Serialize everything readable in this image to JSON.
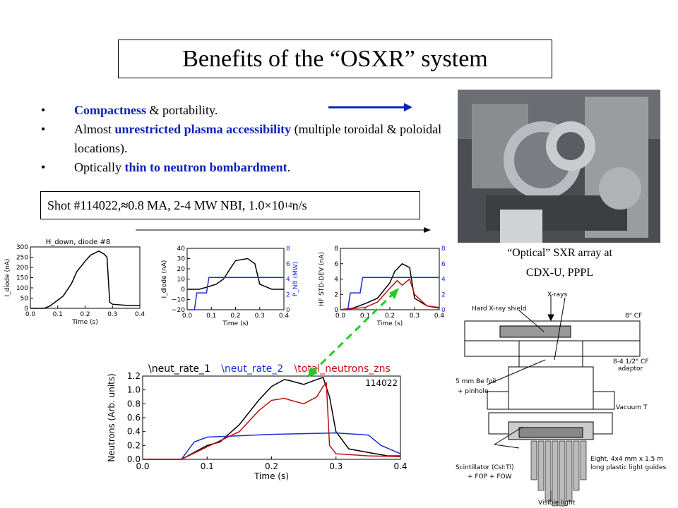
{
  "title": "Benefits of the “OSXR” system",
  "bullets": [
    {
      "bullet": "•",
      "parts": [
        {
          "t": "Compactness",
          "b": true
        },
        {
          "t": "  & portability.",
          "b": false
        }
      ]
    },
    {
      "bullet": "•",
      "parts": [
        {
          "t": "Almost ",
          "b": false
        },
        {
          "t": "unrestricted plasma accessibility",
          "b": true
        },
        {
          "t": " (multiple toroidal & poloidal locations).",
          "b": false
        }
      ]
    },
    {
      "bullet": "•",
      "parts": [
        {
          "t": "Optically ",
          "b": false
        },
        {
          "t": "thin to neutron bombardment",
          "b": true
        },
        {
          "t": ".",
          "b": false
        }
      ]
    }
  ],
  "shot": {
    "prefix": "Shot #114022, ",
    "approx": "≈",
    "mid": " 0.8 MA, 2-4 MW NBI, 1.0",
    "times": "×",
    "base": "10",
    "exp": "14",
    "suffix": " n/s"
  },
  "photo_caption": {
    "line1": "“Optical” SXR array at",
    "line2": "CDX-U, PPPL"
  },
  "colors": {
    "accent_blue": "#0c22b8",
    "series_blue": "#1a2cd6",
    "series_red": "#c01010",
    "dash_green": "#22cc22"
  },
  "chart_data": [
    {
      "type": "line",
      "title": "H_down, diode #8",
      "xlabel": "Time (s)",
      "ylabel": "I_diode (nA)",
      "xlim": [
        0.0,
        0.4
      ],
      "ylim": [
        0,
        300
      ],
      "xticks": [
        "0.0",
        "0.1",
        "0.2",
        "0.3",
        "0.4"
      ],
      "yticks": [
        "0",
        "50",
        "100",
        "150",
        "200",
        "250",
        "300"
      ],
      "series": [
        {
          "x": [
            0.0,
            0.05,
            0.07,
            0.1,
            0.12,
            0.15,
            0.17,
            0.2,
            0.22,
            0.25,
            0.27,
            0.28,
            0.29,
            0.3,
            0.35,
            0.4
          ],
          "y": [
            0,
            0,
            10,
            40,
            60,
            120,
            180,
            230,
            260,
            280,
            265,
            250,
            30,
            20,
            15,
            15
          ]
        }
      ]
    },
    {
      "type": "line",
      "xlabel": "Time (s)",
      "ylabel": "I_diode (nA)",
      "y2label": "P_NB (MW)",
      "xlim": [
        0.0,
        0.4
      ],
      "ylim": [
        -20,
        40
      ],
      "y2lim": [
        0,
        8
      ],
      "xticks": [
        "0.0",
        "0.1",
        "0.2",
        "0.3",
        "0.4"
      ],
      "yticks": [
        "−20",
        "−10",
        "0",
        "10",
        "20",
        "30",
        "40"
      ],
      "y2ticks": [
        "0",
        "2",
        "4",
        "6",
        "8"
      ],
      "series": [
        {
          "x": [
            0.0,
            0.05,
            0.08,
            0.12,
            0.15,
            0.2,
            0.25,
            0.28,
            0.3,
            0.35,
            0.4
          ],
          "y": [
            0,
            0,
            2,
            5,
            10,
            28,
            30,
            25,
            5,
            0,
            0
          ]
        },
        {
          "x": [
            0.0,
            0.03,
            0.04,
            0.08,
            0.09,
            0.3,
            0.31,
            0.4
          ],
          "y": [
            0,
            0,
            2.2,
            2.2,
            4.2,
            4.2,
            4.2,
            4.2
          ]
        }
      ]
    },
    {
      "type": "line",
      "xlabel": "Time (s)",
      "ylabel": "HF STD-DEV (nA)",
      "y2ticks": [
        "0",
        "2",
        "4",
        "6",
        "8"
      ],
      "xlim": [
        0.0,
        0.4
      ],
      "ylim": [
        0,
        8
      ],
      "xticks": [
        "0.0",
        "0.1",
        "0.2",
        "0.3",
        "0.4"
      ],
      "yticks": [
        "0",
        "2",
        "4",
        "6",
        "8"
      ],
      "series": [
        {
          "x": [
            0.0,
            0.05,
            0.1,
            0.15,
            0.2,
            0.22,
            0.25,
            0.28,
            0.3,
            0.35,
            0.4
          ],
          "y": [
            0,
            0.2,
            0.8,
            1.5,
            3.5,
            5.0,
            6.0,
            5.5,
            1.5,
            0.5,
            0.2
          ]
        },
        {
          "x": [
            0.0,
            0.1,
            0.15,
            0.2,
            0.23,
            0.25,
            0.28,
            0.3,
            0.35,
            0.4
          ],
          "y": [
            0,
            0.3,
            1.0,
            2.8,
            3.8,
            3.2,
            4.0,
            2.0,
            0.5,
            0.3
          ]
        },
        {
          "x": [
            0.0,
            0.03,
            0.04,
            0.08,
            0.09,
            0.3,
            0.31,
            0.4
          ],
          "y": [
            0,
            0,
            2.2,
            2.2,
            4.2,
            4.2,
            4.2,
            4.2
          ]
        }
      ]
    },
    {
      "type": "line",
      "xlabel": "Time (s)",
      "ylabel": "Neutrons (Arb. units)",
      "annotation": "114022",
      "xlim": [
        0.0,
        0.4
      ],
      "ylim": [
        0,
        1.2
      ],
      "xticks": [
        "0.0",
        "0.1",
        "0.2",
        "0.3",
        "0.4"
      ],
      "yticks": [
        "0.0",
        "0.2",
        "0.4",
        "0.6",
        "0.8",
        "1.0",
        "1.2"
      ],
      "series": [
        {
          "name": "\\neut_rate_1",
          "color": "#000000",
          "x": [
            0.0,
            0.06,
            0.07,
            0.1,
            0.12,
            0.15,
            0.18,
            0.2,
            0.22,
            0.23,
            0.25,
            0.27,
            0.28,
            0.29,
            0.3,
            0.32,
            0.35,
            0.38,
            0.4
          ],
          "y": [
            0,
            0,
            0.05,
            0.2,
            0.25,
            0.5,
            0.85,
            1.05,
            1.15,
            1.13,
            1.08,
            1.15,
            1.18,
            0.9,
            0.4,
            0.15,
            0.1,
            0.05,
            0.05
          ]
        },
        {
          "name": "\\neut_rate_2",
          "color": "#1a2cd6",
          "x": [
            0.0,
            0.06,
            0.08,
            0.1,
            0.15,
            0.2,
            0.25,
            0.3,
            0.35,
            0.37,
            0.4
          ],
          "y": [
            0,
            0,
            0.25,
            0.32,
            0.34,
            0.36,
            0.37,
            0.38,
            0.35,
            0.2,
            0.08
          ]
        },
        {
          "name": "\\total_neutrons_zns",
          "color": "#c01010",
          "x": [
            0.0,
            0.06,
            0.1,
            0.15,
            0.18,
            0.2,
            0.22,
            0.23,
            0.25,
            0.27,
            0.28,
            0.285,
            0.29,
            0.3,
            0.35,
            0.4
          ],
          "y": [
            0,
            0,
            0.18,
            0.4,
            0.7,
            0.85,
            0.88,
            0.85,
            0.8,
            0.9,
            1.05,
            1.1,
            0.2,
            0.08,
            0.05,
            0.04
          ]
        }
      ]
    }
  ],
  "diagram": {
    "labels": {
      "hard_xray_shield": "Hard X-ray shield",
      "xrays": "X-rays",
      "cf8": "8\" CF",
      "adaptor_line1": "8-4 1/2\" CF",
      "adaptor_line2": "adaptor",
      "be_foil_line1": "5 mm Be foil",
      "be_foil_line2": "+ pinhole",
      "vacuum_t": "Vacuum T",
      "scint_line1": "Scintillator (CsI:Tl)",
      "scint_line2": "+ FOP + FOW",
      "guides_line1": "Eight, 4x4 mm x 1.5 m",
      "guides_line2": "long plastic light guides",
      "visible_light": "Visible light"
    }
  }
}
